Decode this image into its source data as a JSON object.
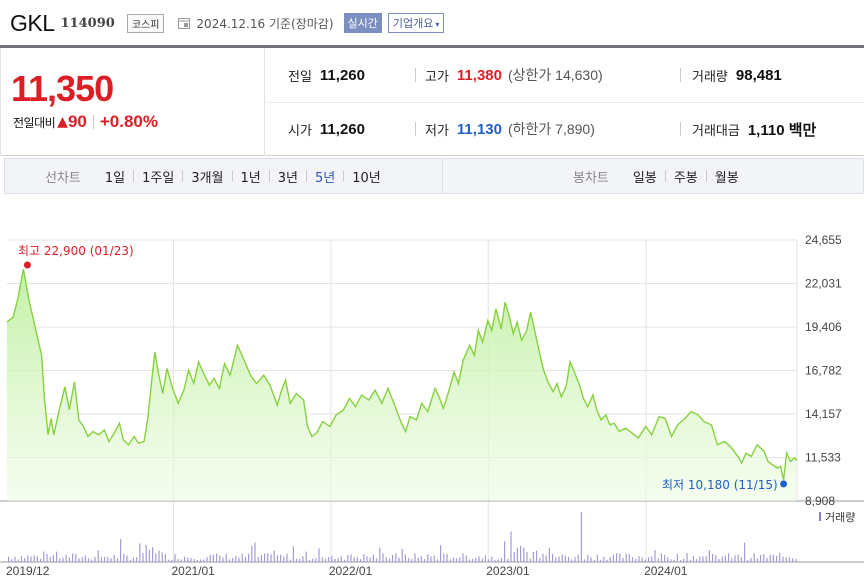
{
  "header": {
    "name": "GKL",
    "code": "114090",
    "market": "코스피",
    "date": "2024.12.16 기준(장마감)",
    "realtime": "실시간",
    "overview": "기업개요",
    "overview_caret": "▾",
    "calendar_icon": "calendar-icon"
  },
  "quote": {
    "price": "11,350",
    "change_label": "전일대비",
    "change_arrow": "▲",
    "change": "90",
    "change_pct": "+0.80%",
    "prev_label": "전일",
    "prev": "11,260",
    "high_label": "고가",
    "high": "11,380",
    "upper_limit_text": "(상한가 14,630)",
    "volume_label": "거래량",
    "volume": "98,481",
    "open_label": "시가",
    "open": "11,260",
    "low_label": "저가",
    "low": "11,130",
    "lower_limit_text": "(하한가 7,890)",
    "amount_label": "거래대금",
    "amount": "1,110 백만"
  },
  "period_bar": {
    "line_title": "선차트",
    "line_items": [
      "1일",
      "1주일",
      "3개월",
      "1년",
      "3년",
      "5년",
      "10년"
    ],
    "active": "5년",
    "candle_title": "봉차트",
    "candle_items": [
      "일봉",
      "주봉",
      "월봉"
    ]
  },
  "colors": {
    "up": "#dc1f26",
    "down": "#1f5fc8",
    "line": "#86d13c",
    "fill": "#c9f0a6",
    "volume": "#a79bd6"
  },
  "chart_data": {
    "type": "area",
    "title": "",
    "xlabel": "",
    "ylabel": "",
    "y_ticks": [
      "24,655",
      "22,031",
      "19,406",
      "16,782",
      "14,157",
      "11,533",
      "8,908"
    ],
    "ylim": [
      8908,
      24655
    ],
    "x_ticks": [
      "2019/12",
      "2021/01",
      "2022/01",
      "2023/01",
      "2024/01"
    ],
    "x_tick_dates": [
      "2019-12-16",
      "2021-01-04",
      "2022-01-03",
      "2023-01-02",
      "2024-01-02"
    ],
    "xlim": [
      "2019-12-16",
      "2024-12-16"
    ],
    "grid": true,
    "high_annotation": "최고 22,900 (01/23)",
    "low_annotation": "최저 10,180 (11/15)",
    "high_point": {
      "x": "2020-01-23",
      "y": 22900
    },
    "low_point": {
      "x": "2024-11-15",
      "y": 10180
    },
    "volume_legend": "거래량",
    "series": [
      {
        "values": [
          [
            "2019-12-16",
            19700
          ],
          [
            "2019-12-30",
            20000
          ],
          [
            "2020-01-10",
            21100
          ],
          [
            "2020-01-23",
            22900
          ],
          [
            "2020-02-05",
            21000
          ],
          [
            "2020-02-20",
            19300
          ],
          [
            "2020-03-05",
            17700
          ],
          [
            "2020-03-12",
            15000
          ],
          [
            "2020-03-20",
            12900
          ],
          [
            "2020-03-27",
            13900
          ],
          [
            "2020-04-02",
            12900
          ],
          [
            "2020-04-15",
            14400
          ],
          [
            "2020-04-28",
            15800
          ],
          [
            "2020-05-08",
            14400
          ],
          [
            "2020-05-20",
            16100
          ],
          [
            "2020-05-30",
            13800
          ],
          [
            "2020-06-10",
            13400
          ],
          [
            "2020-06-20",
            12800
          ],
          [
            "2020-07-02",
            13100
          ],
          [
            "2020-07-15",
            12900
          ],
          [
            "2020-07-28",
            13200
          ],
          [
            "2020-08-08",
            12500
          ],
          [
            "2020-08-20",
            13000
          ],
          [
            "2020-09-01",
            13600
          ],
          [
            "2020-09-10",
            12600
          ],
          [
            "2020-09-22",
            12300
          ],
          [
            "2020-10-05",
            12800
          ],
          [
            "2020-10-15",
            12400
          ],
          [
            "2020-10-28",
            12500
          ],
          [
            "2020-11-06",
            14000
          ],
          [
            "2020-11-15",
            16300
          ],
          [
            "2020-11-22",
            17900
          ],
          [
            "2020-12-01",
            16500
          ],
          [
            "2020-12-10",
            15400
          ],
          [
            "2020-12-20",
            16900
          ],
          [
            "2021-01-02",
            15700
          ],
          [
            "2021-01-15",
            14800
          ],
          [
            "2021-01-28",
            15600
          ],
          [
            "2021-02-08",
            16800
          ],
          [
            "2021-02-20",
            16000
          ],
          [
            "2021-03-03",
            17300
          ],
          [
            "2021-03-15",
            16600
          ],
          [
            "2021-03-28",
            15900
          ],
          [
            "2021-04-08",
            16300
          ],
          [
            "2021-04-20",
            15700
          ],
          [
            "2021-05-02",
            17200
          ],
          [
            "2021-05-15",
            16500
          ],
          [
            "2021-06-01",
            18300
          ],
          [
            "2021-06-15",
            17500
          ],
          [
            "2021-07-01",
            16500
          ],
          [
            "2021-07-15",
            16000
          ],
          [
            "2021-08-01",
            16500
          ],
          [
            "2021-08-15",
            15900
          ],
          [
            "2021-09-01",
            14700
          ],
          [
            "2021-09-10",
            15500
          ],
          [
            "2021-09-20",
            16200
          ],
          [
            "2021-10-01",
            14800
          ],
          [
            "2021-10-15",
            15400
          ],
          [
            "2021-11-01",
            15000
          ],
          [
            "2021-11-10",
            13400
          ],
          [
            "2021-11-20",
            12800
          ],
          [
            "2021-12-01",
            13000
          ],
          [
            "2021-12-15",
            13700
          ],
          [
            "2022-01-01",
            13400
          ],
          [
            "2022-01-15",
            14100
          ],
          [
            "2022-02-01",
            14400
          ],
          [
            "2022-02-15",
            15100
          ],
          [
            "2022-03-01",
            14600
          ],
          [
            "2022-03-15",
            15300
          ],
          [
            "2022-04-01",
            15000
          ],
          [
            "2022-04-15",
            15600
          ],
          [
            "2022-05-01",
            14800
          ],
          [
            "2022-05-15",
            15700
          ],
          [
            "2022-06-01",
            14600
          ],
          [
            "2022-06-15",
            13600
          ],
          [
            "2022-06-25",
            13100
          ],
          [
            "2022-07-05",
            14000
          ],
          [
            "2022-07-20",
            13800
          ],
          [
            "2022-08-01",
            14800
          ],
          [
            "2022-08-15",
            14300
          ],
          [
            "2022-09-01",
            15700
          ],
          [
            "2022-09-10",
            15200
          ],
          [
            "2022-09-20",
            14500
          ],
          [
            "2022-10-01",
            15400
          ],
          [
            "2022-10-15",
            16700
          ],
          [
            "2022-10-25",
            16000
          ],
          [
            "2022-11-05",
            17400
          ],
          [
            "2022-11-20",
            18300
          ],
          [
            "2022-12-01",
            17700
          ],
          [
            "2022-12-10",
            19200
          ],
          [
            "2022-12-20",
            18500
          ],
          [
            "2023-01-01",
            19800
          ],
          [
            "2023-01-10",
            19200
          ],
          [
            "2023-01-20",
            20500
          ],
          [
            "2023-02-01",
            19300
          ],
          [
            "2023-02-10",
            20900
          ],
          [
            "2023-02-20",
            20000
          ],
          [
            "2023-03-01",
            19000
          ],
          [
            "2023-03-10",
            19700
          ],
          [
            "2023-03-20",
            18600
          ],
          [
            "2023-04-01",
            19200
          ],
          [
            "2023-04-10",
            20300
          ],
          [
            "2023-04-20",
            19100
          ],
          [
            "2023-05-01",
            17800
          ],
          [
            "2023-05-10",
            16800
          ],
          [
            "2023-05-20",
            16100
          ],
          [
            "2023-06-01",
            15500
          ],
          [
            "2023-06-10",
            16000
          ],
          [
            "2023-06-20",
            15200
          ],
          [
            "2023-07-01",
            15800
          ],
          [
            "2023-07-10",
            17300
          ],
          [
            "2023-07-20",
            16700
          ],
          [
            "2023-08-01",
            15900
          ],
          [
            "2023-08-10",
            15100
          ],
          [
            "2023-08-20",
            14600
          ],
          [
            "2023-09-01",
            15300
          ],
          [
            "2023-09-10",
            14400
          ],
          [
            "2023-09-20",
            13800
          ],
          [
            "2023-10-01",
            14100
          ],
          [
            "2023-10-10",
            13500
          ],
          [
            "2023-10-20",
            13600
          ],
          [
            "2023-11-01",
            13100
          ],
          [
            "2023-11-15",
            13300
          ],
          [
            "2023-12-01",
            13000
          ],
          [
            "2023-12-15",
            12700
          ],
          [
            "2024-01-01",
            13400
          ],
          [
            "2024-01-15",
            12900
          ],
          [
            "2024-02-01",
            14000
          ],
          [
            "2024-02-15",
            13900
          ],
          [
            "2024-03-01",
            12800
          ],
          [
            "2024-03-15",
            13500
          ],
          [
            "2024-04-01",
            13900
          ],
          [
            "2024-04-15",
            14300
          ],
          [
            "2024-05-01",
            14100
          ],
          [
            "2024-05-15",
            13700
          ],
          [
            "2024-06-01",
            13500
          ],
          [
            "2024-06-15",
            12300
          ],
          [
            "2024-07-01",
            12500
          ],
          [
            "2024-07-15",
            12200
          ],
          [
            "2024-08-01",
            11600
          ],
          [
            "2024-08-10",
            11200
          ],
          [
            "2024-08-20",
            11800
          ],
          [
            "2024-09-01",
            11600
          ],
          [
            "2024-09-15",
            12300
          ],
          [
            "2024-10-01",
            11900
          ],
          [
            "2024-10-10",
            11300
          ],
          [
            "2024-10-20",
            11100
          ],
          [
            "2024-11-01",
            10900
          ],
          [
            "2024-11-08",
            11000
          ],
          [
            "2024-11-15",
            10180
          ],
          [
            "2024-11-22",
            11800
          ],
          [
            "2024-12-01",
            11300
          ],
          [
            "2024-12-10",
            11500
          ],
          [
            "2024-12-16",
            11350
          ]
        ]
      }
    ]
  }
}
